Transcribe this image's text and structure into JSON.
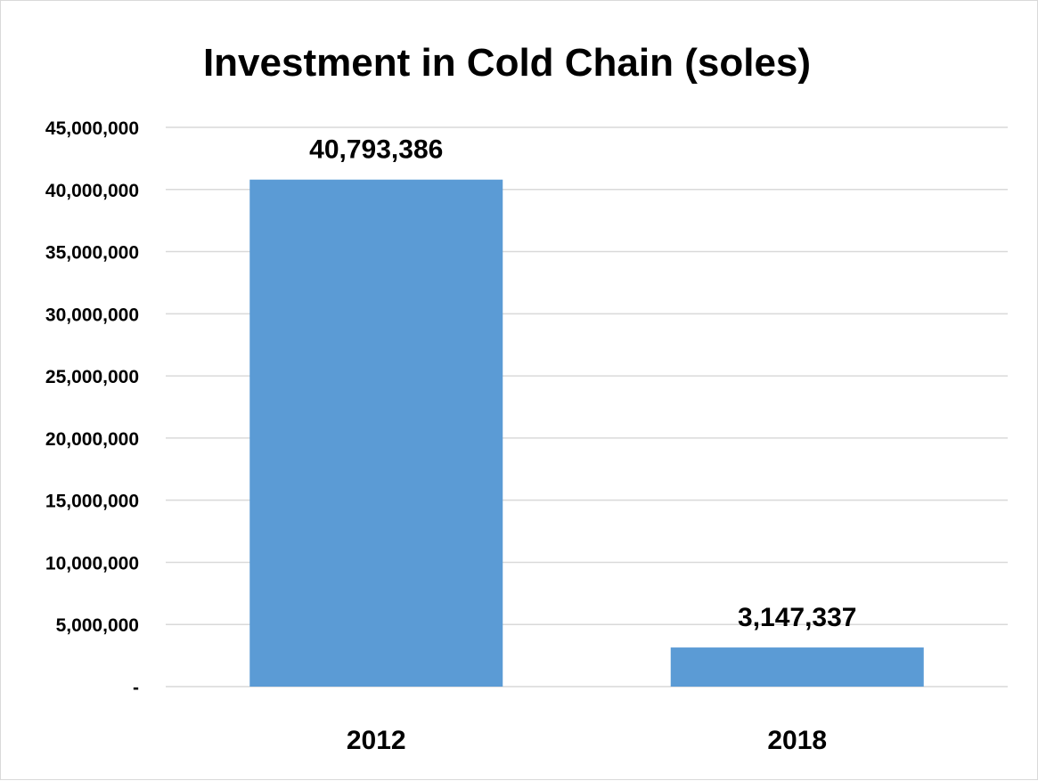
{
  "chart_data": {
    "type": "bar",
    "title": "Investment in Cold Chain (soles)",
    "xlabel": "",
    "ylabel": "",
    "categories": [
      "2012",
      "2018"
    ],
    "values": [
      40793386,
      3147337
    ],
    "data_labels": [
      "40,793,386",
      "3,147,337"
    ],
    "ylim": [
      0,
      45000000
    ],
    "y_ticks": [
      0,
      5000000,
      10000000,
      15000000,
      20000000,
      25000000,
      30000000,
      35000000,
      40000000,
      45000000
    ],
    "y_tick_labels": [
      "-",
      "5,000,000",
      "10,000,000",
      "15,000,000",
      "20,000,000",
      "25,000,000",
      "30,000,000",
      "35,000,000",
      "40,000,000",
      "45,000,000"
    ],
    "grid": true,
    "legend": "none",
    "bar_color": "#5b9bd5"
  }
}
